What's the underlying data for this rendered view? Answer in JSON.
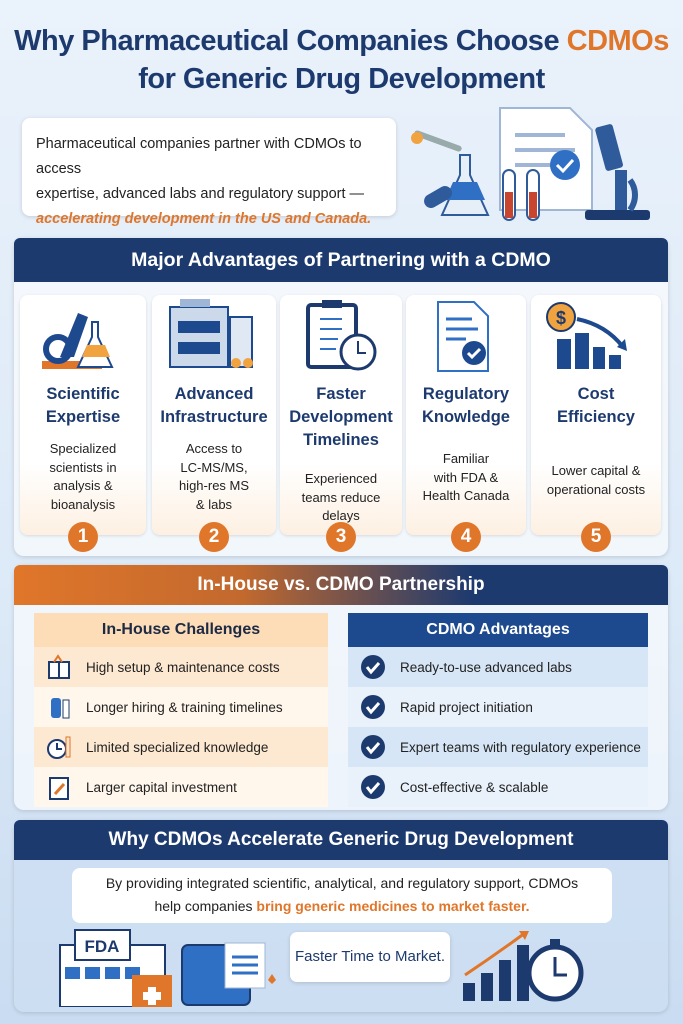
{
  "title": {
    "line1": "Why Pharmaceutical Companies Choose ",
    "line1_highlight": "CDMOs",
    "line2": "for Generic Drug Development"
  },
  "intro": {
    "line1": "Pharmaceutical companies partner with CDMOs to access",
    "line2": "expertise, advanced labs and regulatory support —",
    "highlight": "accelerating development in the US and Canada."
  },
  "advantages": {
    "header": "Major Advantages of Partnering with a CDMO",
    "items": [
      {
        "number": "1",
        "title1": "Scientific",
        "title2": "Expertise",
        "desc": [
          "Specialized",
          "scientists in",
          "analysis &",
          "bioanalysis"
        ],
        "icon": "microscope-flask-icon"
      },
      {
        "number": "2",
        "title1": "Advanced",
        "title2": "Infrastructure",
        "desc": [
          "Access to",
          "LC-MS/MS,",
          "high-res MS",
          "& labs"
        ],
        "icon": "lab-instrument-icon"
      },
      {
        "number": "3",
        "title1": "Faster",
        "title2": "Development",
        "title3": "Timelines",
        "desc": [
          "Experienced",
          "teams reduce",
          "delays"
        ],
        "icon": "checklist-clock-icon"
      },
      {
        "number": "4",
        "title1": "Regulatory",
        "title2": "Knowledge",
        "desc": [
          "Familiar",
          "with FDA &",
          "Health Canada"
        ],
        "icon": "document-check-icon"
      },
      {
        "number": "5",
        "title1": "Cost",
        "title2": "Efficiency",
        "desc": [
          "Lower capital &",
          "operational costs"
        ],
        "icon": "cost-decline-chart-icon"
      }
    ]
  },
  "comparison": {
    "header": "In-House vs. CDMO Partnership",
    "left": {
      "header": "In-House Challenges",
      "items": [
        "High setup & maintenance costs",
        "Longer hiring & training timelines",
        "Limited specialized knowledge",
        "Larger capital investment"
      ]
    },
    "right": {
      "header": "CDMO Advantages",
      "items": [
        "Ready-to-use advanced labs",
        "Rapid project initiation",
        "Expert teams with regulatory experience",
        "Cost-effective & scalable"
      ]
    }
  },
  "accelerate": {
    "header": "Why CDMOs Accelerate Generic Drug Development",
    "line1": "By providing integrated scientific, analytical, and regulatory support, CDMOs",
    "line2": "help companies ",
    "highlight": "bring generic medicines to market faster.",
    "badge": "Faster Time to Market.",
    "fda_logo": "FDA"
  },
  "colors": {
    "navy": "#1d3a6f",
    "orange": "#e0762a",
    "peach": "#fde4c8"
  }
}
